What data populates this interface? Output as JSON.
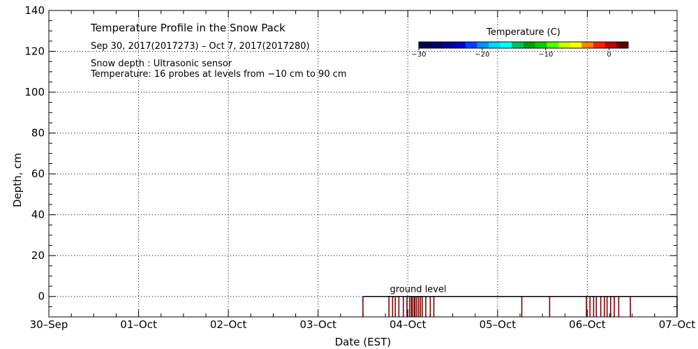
{
  "chart_data": {
    "type": "heatmap",
    "title": "Temperature Profile in the Snow Pack",
    "subtitle": "Sep 30, 2017(2017273) – Oct  7, 2017(2017280)",
    "info_lines": [
      "Snow depth : Ultrasonic sensor",
      "Temperature: 16 probes at levels from −10 cm to 90 cm"
    ],
    "xlabel": "Date (EST)",
    "ylabel": "Depth, cm",
    "xlim": [
      0,
      7
    ],
    "ylim": [
      -10,
      140
    ],
    "x_ticks": [
      {
        "value": 0,
        "label": "30–Sep"
      },
      {
        "value": 1,
        "label": "01–Oct"
      },
      {
        "value": 2,
        "label": "02–Oct"
      },
      {
        "value": 3,
        "label": "03–Oct"
      },
      {
        "value": 4,
        "label": "04–Oct"
      },
      {
        "value": 5,
        "label": "05–Oct"
      },
      {
        "value": 6,
        "label": "06–Oct"
      },
      {
        "value": 7,
        "label": "07–Oct"
      }
    ],
    "y_ticks": [
      {
        "value": 0,
        "label": "0"
      },
      {
        "value": 20,
        "label": "20"
      },
      {
        "value": 40,
        "label": "40"
      },
      {
        "value": 60,
        "label": "60"
      },
      {
        "value": 80,
        "label": "80"
      },
      {
        "value": 100,
        "label": "100"
      },
      {
        "value": 120,
        "label": "120"
      },
      {
        "value": 140,
        "label": "140"
      }
    ],
    "grid": true,
    "ground_level": {
      "label": "ground level",
      "depth": 0,
      "x_start": 3.5,
      "x_end": 7.0
    },
    "colorbar": {
      "title": "Temperature (C)",
      "range": [
        -30,
        3
      ],
      "ticks": [
        {
          "value": -30,
          "label": "−30"
        },
        {
          "value": -20,
          "label": "−20"
        },
        {
          "value": -10,
          "label": "−10"
        },
        {
          "value": 0,
          "label": "0"
        }
      ],
      "colors": [
        "#00004b",
        "#000068",
        "#000096",
        "#0000c8",
        "#0040ff",
        "#0090ff",
        "#00d8ff",
        "#00ffff",
        "#00c060",
        "#00a000",
        "#00d000",
        "#50ff00",
        "#c8ff00",
        "#ffff00",
        "#ff8000",
        "#ff2000",
        "#c00000",
        "#600000"
      ]
    },
    "snow_depth_markers": {
      "color": "#7a0000",
      "depth_range": [
        -10,
        0
      ],
      "x": [
        3.5,
        3.79,
        3.83,
        3.86,
        3.9,
        3.95,
        3.99,
        4.02,
        4.04,
        4.05,
        4.07,
        4.08,
        4.1,
        4.12,
        4.14,
        4.16,
        4.2,
        4.25,
        4.29,
        5.27,
        5.58,
        5.99,
        6.03,
        6.07,
        6.1,
        6.15,
        6.19,
        6.22,
        6.26,
        6.3,
        6.35,
        6.48,
        7.0
      ]
    }
  }
}
